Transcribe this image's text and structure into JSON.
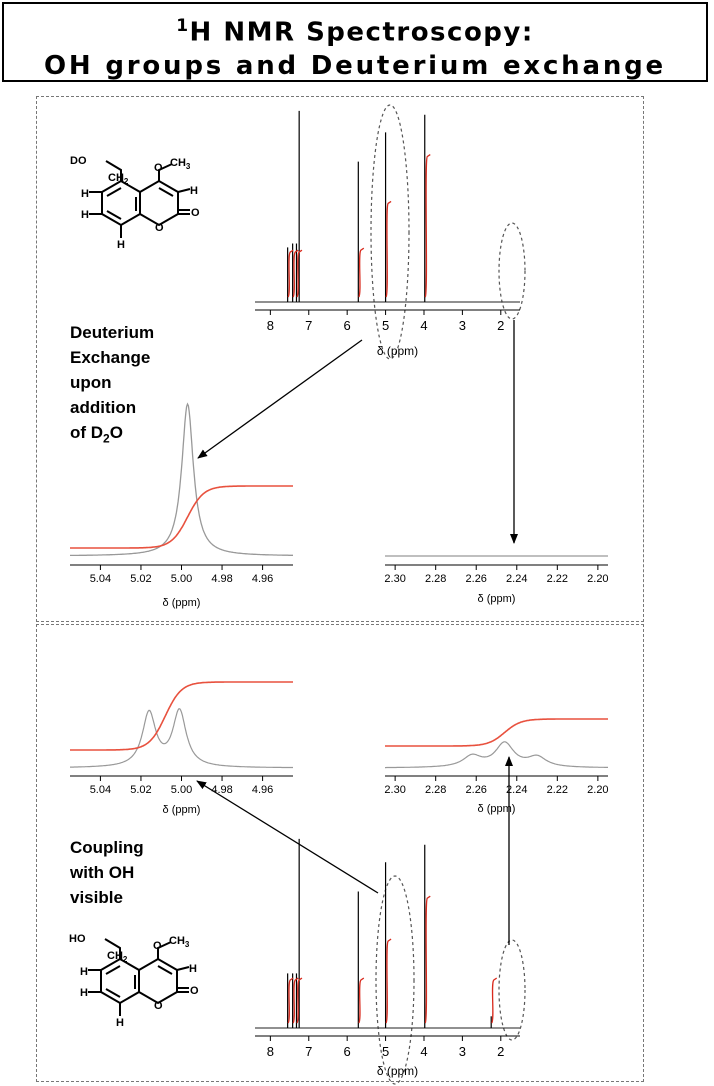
{
  "title": {
    "sup": "1",
    "line1": "H NMR Spectroscopy:",
    "line2": "OH groups and Deuterium exchange"
  },
  "top_panel": {
    "note_lines": [
      "Deuterium",
      "Exchange",
      "upon",
      "addition",
      "of D"
    ],
    "note_sub": "2",
    "note_tail": "O",
    "molecule_labels": {
      "substituent": "DO",
      "ch2": "CH",
      "ch2_sub": "2",
      "o": "O",
      "ch3": "CH",
      "ch3_sub": "3",
      "h1": "H",
      "h2": "H",
      "h3": "H",
      "h4": "H",
      "ring_o": "O",
      "carbonyl_o": "O"
    }
  },
  "bottom_panel": {
    "note_lines": [
      "Coupling",
      "with OH",
      "visible"
    ],
    "molecule_labels": {
      "substituent": "HO",
      "ch2": "CH",
      "ch2_sub": "2",
      "o": "O",
      "ch3": "CH",
      "ch3_sub": "3",
      "h1": "H",
      "h2": "H",
      "h3": "H",
      "h4": "H",
      "ring_o": "O",
      "carbonyl_o": "O"
    }
  },
  "chart_data": [
    {
      "id": "full-spectrum-d2o",
      "type": "line",
      "xlabel": "δ (ppm)",
      "xlim": [
        8.4,
        1.5
      ],
      "x_ticks": [
        8,
        7,
        6,
        5,
        4,
        3,
        2
      ],
      "peaks": [
        {
          "x": 7.55,
          "height": 0.28
        },
        {
          "x": 7.42,
          "height": 0.3
        },
        {
          "x": 7.32,
          "height": 0.3
        },
        {
          "x": 7.25,
          "height": 0.98
        },
        {
          "x": 5.71,
          "height": 0.72
        },
        {
          "x": 5.0,
          "height": 0.87
        },
        {
          "x": 3.98,
          "height": 0.96
        }
      ],
      "integrals": [
        {
          "x": 7.55,
          "rise": 0.23
        },
        {
          "x": 7.42,
          "rise": 0.23
        },
        {
          "x": 7.32,
          "rise": 0.23
        },
        {
          "x": 5.71,
          "rise": 0.24
        },
        {
          "x": 5.0,
          "rise": 0.48
        },
        {
          "x": 3.98,
          "rise": 0.72
        }
      ],
      "series_colors": {
        "spectrum": "#000000",
        "integral": "#d92b1e"
      }
    },
    {
      "id": "zoom-ch2-d2o",
      "type": "line",
      "xlabel": "δ (ppm)",
      "xlim": [
        5.055,
        4.945
      ],
      "x_ticks": [
        "5.04",
        "5.02",
        "5.00",
        "4.98",
        "4.96"
      ],
      "x_tick_values": [
        5.04,
        5.02,
        5.0,
        4.98,
        4.96
      ],
      "peaks": [
        {
          "x": 4.997,
          "height": 1.0,
          "width": 0.0035
        }
      ],
      "integral": {
        "start": 0.0,
        "end": 0.62,
        "center": 4.997
      },
      "series_colors": {
        "spectrum": "#999999",
        "integral": "#e8513e"
      }
    },
    {
      "id": "zoom-oh-d2o",
      "type": "line",
      "xlabel": "δ (ppm)",
      "xlim": [
        2.305,
        2.195
      ],
      "x_ticks": [
        "2.30",
        "2.28",
        "2.26",
        "2.24",
        "2.22",
        "2.20"
      ],
      "x_tick_values": [
        2.3,
        2.28,
        2.26,
        2.24,
        2.22,
        2.2
      ],
      "peaks": [],
      "series_colors": {
        "spectrum": "#999999"
      }
    },
    {
      "id": "zoom-ch2-coupled",
      "type": "line",
      "xlabel": "δ (ppm)",
      "xlim": [
        5.055,
        4.945
      ],
      "x_ticks": [
        "5.04",
        "5.02",
        "5.00",
        "4.98",
        "4.96"
      ],
      "x_tick_values": [
        5.04,
        5.02,
        5.0,
        4.98,
        4.96
      ],
      "peaks": [
        {
          "x": 5.016,
          "height": 0.6,
          "width": 0.004
        },
        {
          "x": 5.001,
          "height": 0.62,
          "width": 0.004
        }
      ],
      "integral": {
        "start": 0.0,
        "end": 0.85,
        "center": 5.008
      },
      "series_colors": {
        "spectrum": "#999999",
        "integral": "#e8513e"
      }
    },
    {
      "id": "zoom-oh-coupled",
      "type": "line",
      "xlabel": "δ (ppm)",
      "xlim": [
        2.305,
        2.195
      ],
      "x_ticks": [
        "2.30",
        "2.28",
        "2.26",
        "2.24",
        "2.22",
        "2.20"
      ],
      "x_tick_values": [
        2.3,
        2.28,
        2.26,
        2.24,
        2.22,
        2.2
      ],
      "peaks": [
        {
          "x": 2.262,
          "height": 0.22,
          "width": 0.0055
        },
        {
          "x": 2.246,
          "height": 0.48,
          "width": 0.0055
        },
        {
          "x": 2.23,
          "height": 0.2,
          "width": 0.0055
        }
      ],
      "integral": {
        "start": 0.08,
        "end": 0.62,
        "center": 2.246
      },
      "series_colors": {
        "spectrum": "#999999",
        "integral": "#e8513e"
      }
    },
    {
      "id": "full-spectrum-coupled",
      "type": "line",
      "xlabel": "δ (ppm)",
      "xlim": [
        8.4,
        1.5
      ],
      "x_ticks": [
        8,
        7,
        6,
        5,
        4,
        3,
        2
      ],
      "peaks": [
        {
          "x": 7.55,
          "height": 0.28
        },
        {
          "x": 7.42,
          "height": 0.28
        },
        {
          "x": 7.32,
          "height": 0.28
        },
        {
          "x": 7.25,
          "height": 0.97
        },
        {
          "x": 5.71,
          "height": 0.7
        },
        {
          "x": 5.0,
          "height": 0.85
        },
        {
          "x": 3.98,
          "height": 0.94
        },
        {
          "x": 2.25,
          "height": 0.06
        }
      ],
      "integrals": [
        {
          "x": 7.55,
          "rise": 0.22
        },
        {
          "x": 7.42,
          "rise": 0.22
        },
        {
          "x": 7.32,
          "rise": 0.22
        },
        {
          "x": 5.71,
          "rise": 0.22
        },
        {
          "x": 5.0,
          "rise": 0.42
        },
        {
          "x": 3.98,
          "rise": 0.64
        },
        {
          "x": 2.25,
          "rise": 0.22
        }
      ],
      "series_colors": {
        "spectrum": "#000000",
        "integral": "#d92b1e"
      }
    }
  ]
}
